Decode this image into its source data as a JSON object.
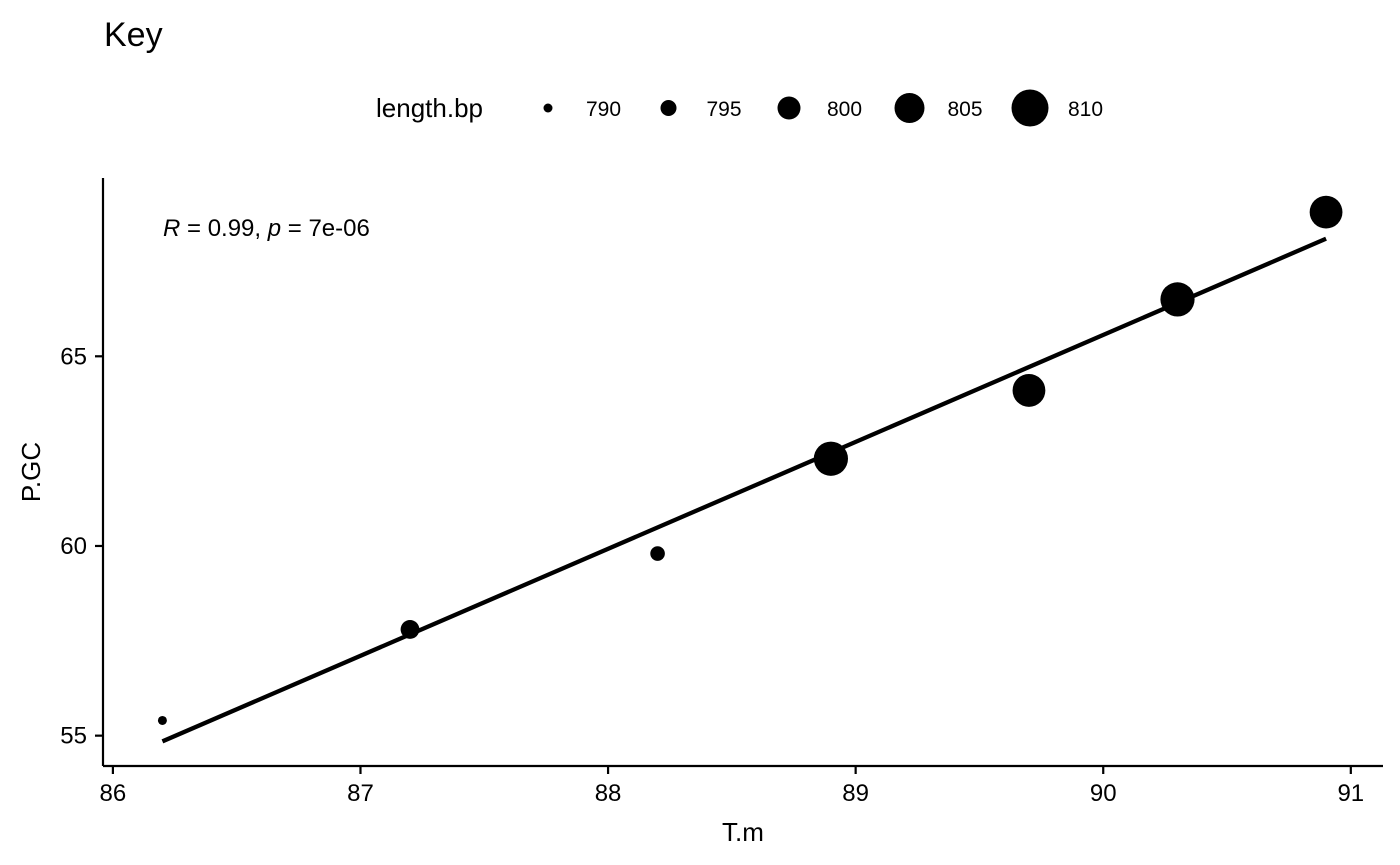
{
  "chart_data": {
    "type": "scatter",
    "title": "Key",
    "xlabel": "T.m",
    "ylabel": "P.GC",
    "xlim": [
      85.96,
      91.13
    ],
    "ylim": [
      54.2,
      69.7
    ],
    "x_ticks": [
      86,
      87,
      88,
      89,
      90,
      91
    ],
    "y_ticks": [
      55,
      60,
      65
    ],
    "grid": false,
    "legend": {
      "title": "length.bp",
      "placement": "top",
      "items": [
        {
          "label": "790",
          "value": 790
        },
        {
          "label": "795",
          "value": 795
        },
        {
          "label": "800",
          "value": 800
        },
        {
          "label": "805",
          "value": 805
        },
        {
          "label": "810",
          "value": 810
        }
      ]
    },
    "size_variable": "length.bp",
    "points": [
      {
        "x": 86.2,
        "y": 55.4,
        "size": 790
      },
      {
        "x": 87.2,
        "y": 57.8,
        "size": 797
      },
      {
        "x": 88.2,
        "y": 59.8,
        "size": 794
      },
      {
        "x": 88.9,
        "y": 62.3,
        "size": 808
      },
      {
        "x": 89.7,
        "y": 64.1,
        "size": 807
      },
      {
        "x": 90.3,
        "y": 66.5,
        "size": 808
      },
      {
        "x": 90.9,
        "y": 68.8,
        "size": 807
      }
    ],
    "trend_line": {
      "type": "linear",
      "x_start": 86.2,
      "y_start": 54.85,
      "x_end": 90.9,
      "y_end": 68.1
    },
    "annotation": {
      "r_symbol": "R",
      "r_text": " = 0.99, ",
      "p_symbol": "p",
      "p_text": " = 7e-06"
    },
    "colors": {
      "points": "#000000",
      "line": "#000000",
      "background": "#ffffff"
    }
  }
}
